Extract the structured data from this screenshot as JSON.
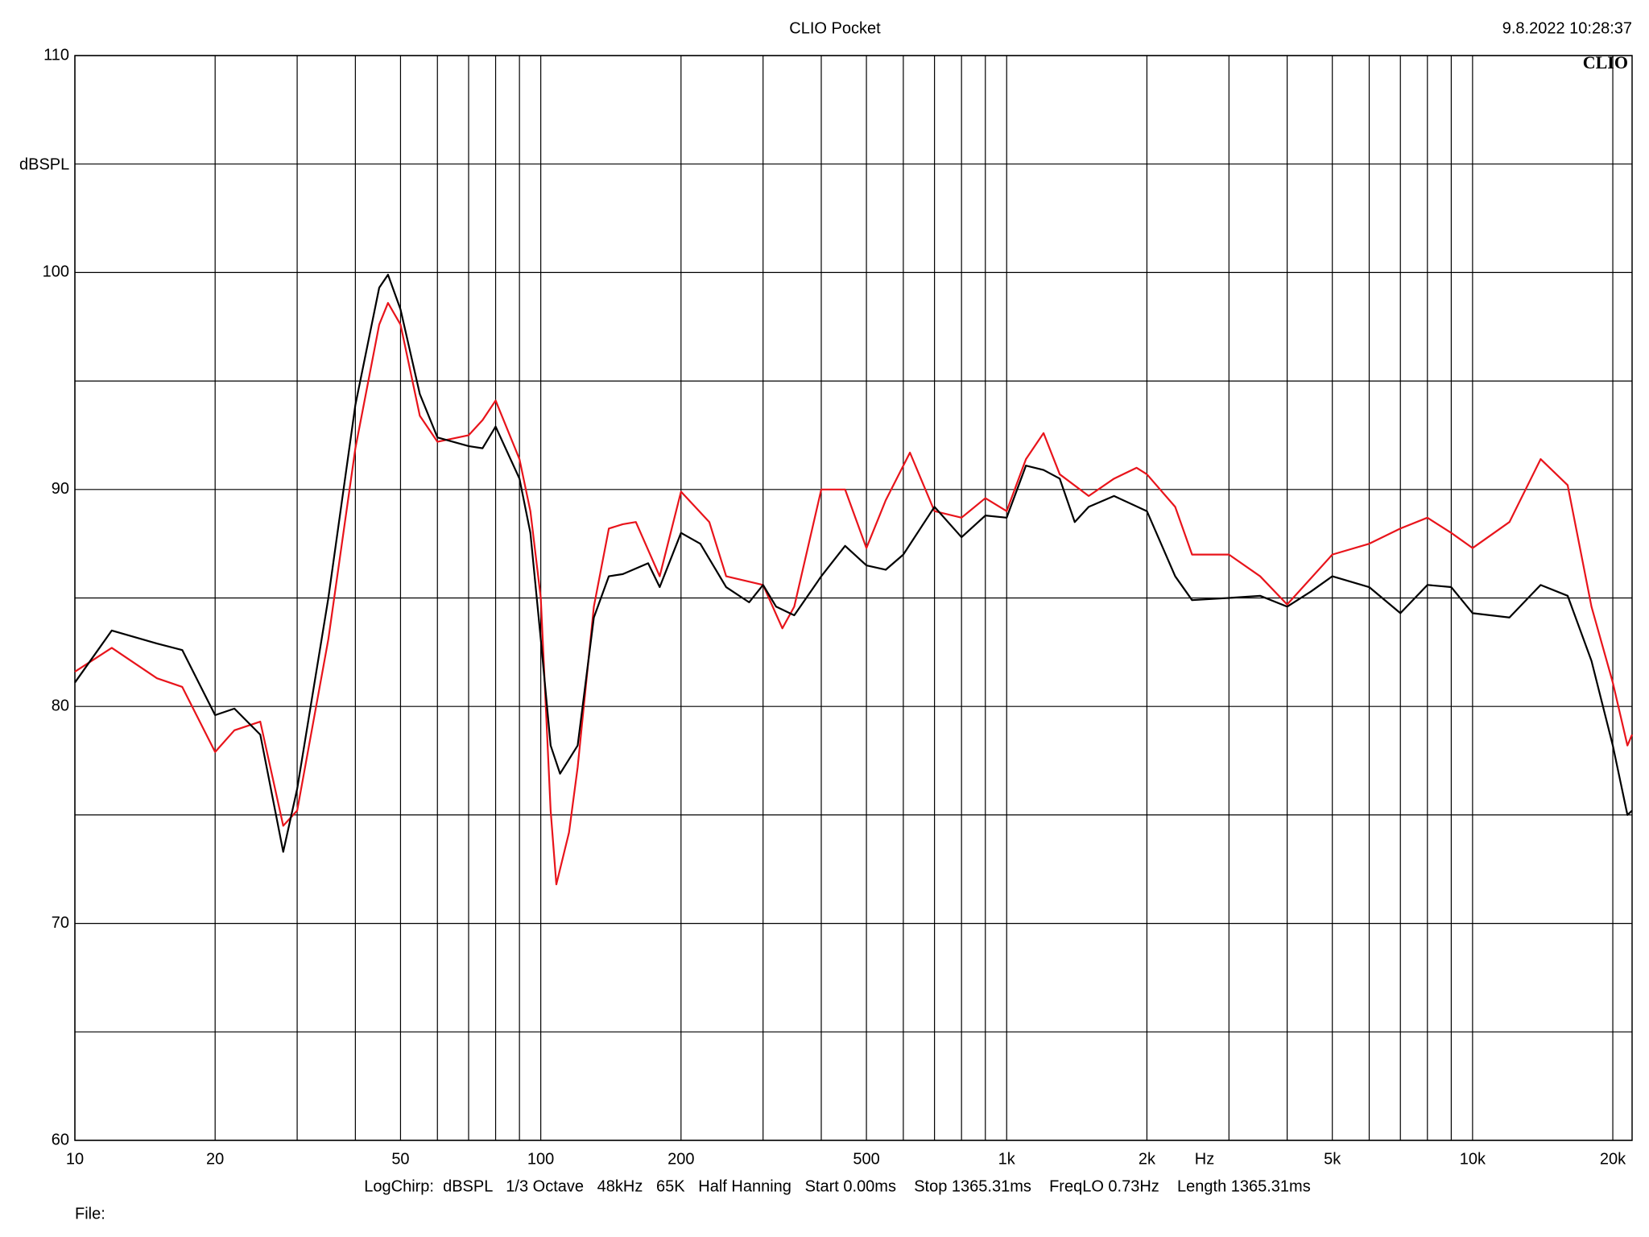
{
  "chart_data": {
    "type": "line",
    "title": "CLIO Pocket",
    "timestamp": "9.8.2022 10:28:37",
    "logo": "CLIO",
    "y_label": "dBSPL",
    "x_label": "Hz",
    "footer": "LogChirp:  dBSPL   1/3 Octave   48kHz   65K   Half Hanning   Start 0.00ms    Stop 1365.31ms    FreqLO 0.73Hz    Length 1365.31ms",
    "file_label": "File:",
    "x_scale": "log",
    "xlim": [
      10,
      22000
    ],
    "xticks": [
      10,
      20,
      50,
      100,
      200,
      500,
      {
        "value": 1000,
        "label": "1k"
      },
      {
        "value": 2000,
        "label": "2k"
      },
      {
        "value": 5000,
        "label": "5k"
      },
      {
        "value": 10000,
        "label": "10k"
      },
      {
        "value": 20000,
        "label": "20k"
      }
    ],
    "x_minor_grid": [
      30,
      40,
      60,
      70,
      80,
      90,
      300,
      400,
      600,
      700,
      800,
      900,
      3000,
      4000,
      6000,
      7000,
      8000,
      9000
    ],
    "ylim": [
      60,
      110
    ],
    "yticks": [
      60,
      70,
      80,
      90,
      100,
      110
    ],
    "y_minor_grid": [
      65,
      75,
      85,
      95,
      105
    ],
    "grid": true,
    "series": [
      {
        "name": "black",
        "color": "#000000",
        "x": [
          10,
          12,
          15,
          17,
          20,
          22,
          25,
          28,
          30,
          35,
          40,
          45,
          47,
          50,
          55,
          60,
          70,
          75,
          80,
          90,
          95,
          100,
          105,
          110,
          120,
          130,
          140,
          150,
          170,
          180,
          200,
          220,
          250,
          280,
          300,
          320,
          350,
          400,
          450,
          500,
          550,
          600,
          700,
          800,
          900,
          1000,
          1100,
          1200,
          1300,
          1400,
          1500,
          1700,
          2000,
          2300,
          2500,
          3000,
          3500,
          4000,
          4500,
          5000,
          6000,
          7000,
          8000,
          9000,
          10000,
          12000,
          14000,
          16000,
          18000,
          20000,
          21500,
          22000
        ],
        "values": [
          81.1,
          83.5,
          82.9,
          82.6,
          79.6,
          79.9,
          78.7,
          73.3,
          76.2,
          85.0,
          93.9,
          99.3,
          99.9,
          98.3,
          94.4,
          92.4,
          92.0,
          91.9,
          92.9,
          90.5,
          88.0,
          83.1,
          78.2,
          76.9,
          78.2,
          84.1,
          86.0,
          86.1,
          86.6,
          85.5,
          88.0,
          87.5,
          85.5,
          84.8,
          85.6,
          84.6,
          84.2,
          86.0,
          87.4,
          86.5,
          86.3,
          87.0,
          89.2,
          87.8,
          88.8,
          88.7,
          91.1,
          90.9,
          90.5,
          88.5,
          89.2,
          89.7,
          89.0,
          86.0,
          84.9,
          85.0,
          85.1,
          84.6,
          85.3,
          86.0,
          85.5,
          84.3,
          85.6,
          85.5,
          84.3,
          84.1,
          85.6,
          85.1,
          82.1,
          78.2,
          75.0,
          75.2
        ]
      },
      {
        "name": "red",
        "color": "#e8141b",
        "x": [
          10,
          12,
          15,
          17,
          20,
          22,
          25,
          28,
          30,
          35,
          40,
          45,
          47,
          50,
          55,
          60,
          70,
          75,
          80,
          90,
          95,
          100,
          105,
          108,
          115,
          120,
          130,
          140,
          150,
          160,
          180,
          200,
          230,
          250,
          300,
          330,
          350,
          400,
          450,
          500,
          550,
          620,
          700,
          800,
          900,
          1000,
          1100,
          1200,
          1300,
          1500,
          1700,
          1900,
          2000,
          2300,
          2500,
          3000,
          3500,
          4000,
          5000,
          6000,
          7000,
          8000,
          9000,
          10000,
          12000,
          14000,
          16000,
          18000,
          20000,
          21500,
          22000
        ],
        "values": [
          81.6,
          82.7,
          81.3,
          80.9,
          77.9,
          78.9,
          79.3,
          74.5,
          75.2,
          83.1,
          91.9,
          97.6,
          98.6,
          97.6,
          93.4,
          92.2,
          92.5,
          93.2,
          94.1,
          91.4,
          89.0,
          85.0,
          75.2,
          71.8,
          74.2,
          77.2,
          84.6,
          88.2,
          88.4,
          88.5,
          86.0,
          89.9,
          88.5,
          86.0,
          85.6,
          83.6,
          84.6,
          90.0,
          90.0,
          87.3,
          89.5,
          91.7,
          89.0,
          88.7,
          89.6,
          89.0,
          91.4,
          92.6,
          90.7,
          89.7,
          90.5,
          91.0,
          90.7,
          89.2,
          87.0,
          87.0,
          86.0,
          84.7,
          87.0,
          87.5,
          88.2,
          88.7,
          88.0,
          87.3,
          88.5,
          91.4,
          90.2,
          84.6,
          81.1,
          78.2,
          78.7
        ]
      }
    ]
  }
}
